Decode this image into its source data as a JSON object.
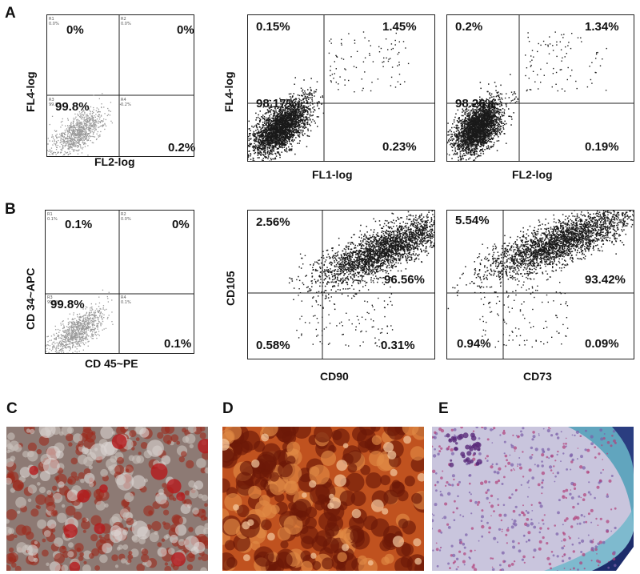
{
  "letters": {
    "a": "A",
    "b": "B",
    "c": "C",
    "d": "D",
    "e": "E"
  },
  "colors": {
    "dots": "#1a1a1a",
    "control_dots": "#9a9a9a",
    "stain_c": "#9c2a1c",
    "stain_d": "#6b1808",
    "stain_e": "#5fa8c0"
  },
  "plots": {
    "a1": {
      "ylabel": "FL4-log",
      "xlabel": "FL2-log",
      "q_ul": "0%",
      "q_ur": "0%",
      "q_ll": "99.8%",
      "q_lr": "0.2%",
      "r1": "R1",
      "r2": "R2",
      "r3": "R3",
      "r4": "R4",
      "v1": "0.0%",
      "v2": "0.0%",
      "v3": "99.8%",
      "v4": "0.2%"
    },
    "a2": {
      "ylabel": "FL4-log",
      "xlabel": "FL1-log",
      "q_ul": "0.15%",
      "q_ur": "1.45%",
      "q_ll": "98.17%",
      "q_lr": "0.23%"
    },
    "a3": {
      "xlabel": "FL2-log",
      "q_ul": "0.2%",
      "q_ur": "1.34%",
      "q_ll": "98.26%",
      "q_lr": "0.19%"
    },
    "b1": {
      "ylabel": "CD 34~APC",
      "xlabel": "CD 45~PE",
      "q_ul": "0.1%",
      "q_ur": "0%",
      "q_ll": "99.8%",
      "q_lr": "0.1%",
      "r1": "R1",
      "r2": "R2",
      "r3": "R3",
      "r4": "R4",
      "v1": "0.1%",
      "v2": "0.0%",
      "v3": "99.8%",
      "v4": "0.1%"
    },
    "b2": {
      "ylabel": "CD105",
      "xlabel": "CD90",
      "q_ul": "2.56%",
      "q_ur": "",
      "q_ll": "0.58%",
      "q_lr": "0.31%",
      "q_mid": "96.56%"
    },
    "b3": {
      "xlabel": "CD73",
      "q_ul": "5.54%",
      "q_ll": "0.94%",
      "q_lr": "0.09%",
      "q_mid": "93.42%"
    }
  }
}
